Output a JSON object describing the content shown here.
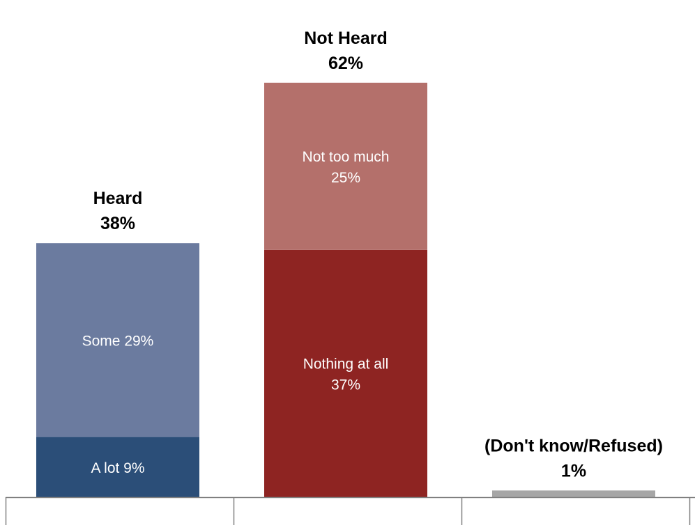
{
  "chart_data": {
    "type": "bar",
    "stacked": true,
    "categories": [
      "Heard",
      "Not Heard",
      "(Don't know/Refused)"
    ],
    "totals": [
      "38%",
      "62%",
      "1%"
    ],
    "ylim": [
      0,
      70
    ],
    "grid": false,
    "series": [
      {
        "name": "A lot",
        "label": "A lot 9%",
        "values": [
          9,
          0,
          0
        ],
        "color": "#2b4e78"
      },
      {
        "name": "Some",
        "label": "Some 29%",
        "values": [
          29,
          0,
          0
        ],
        "color": "#6b7b9f"
      },
      {
        "name": "Nothing at all",
        "label": [
          "Nothing at all",
          "37%"
        ],
        "values": [
          0,
          37,
          0
        ],
        "color": "#8e2422"
      },
      {
        "name": "Not too much",
        "label": [
          "Not too much",
          "25%"
        ],
        "values": [
          0,
          25,
          0
        ],
        "color": "#b4706b"
      },
      {
        "name": "(Don't know/Refused)",
        "label": "",
        "values": [
          0,
          0,
          1
        ],
        "color": "#a6a6a6"
      }
    ],
    "legend": {
      "placement": "right",
      "color": "#6b7b9f"
    }
  }
}
